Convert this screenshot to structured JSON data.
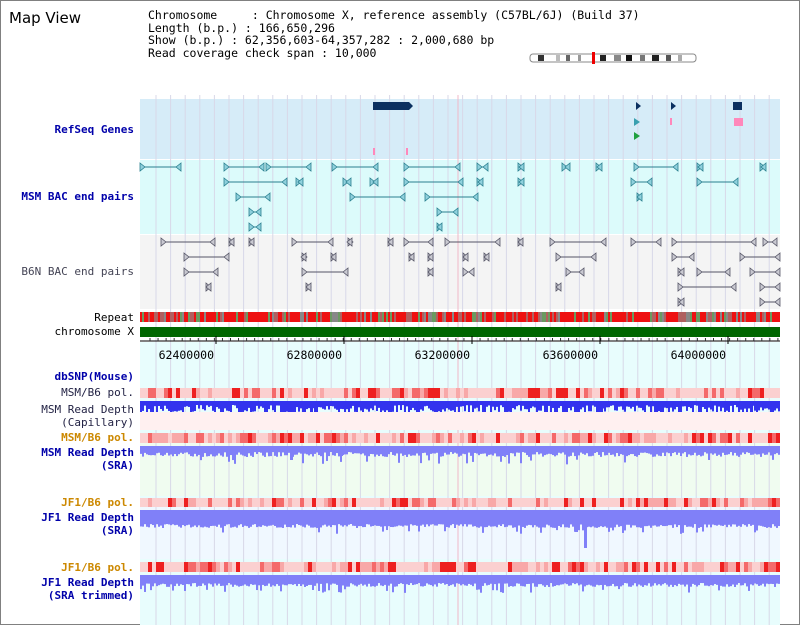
{
  "window": {
    "title": "Map View"
  },
  "info": {
    "line1": "Chromosome     : Chromosome X, reference assembly (C57BL/6J) (Build 37)",
    "line2": "Length (b.p.) : 166,650,296",
    "line3": "Show (b.p.) : 62,356,603-64,357,282 : 2,000,680 bp",
    "line4": "Read coverage check span : 10,000"
  },
  "tracks": {
    "refseq": "RefSeq Genes",
    "msm_bac": "MSM BAC end pairs",
    "b6n_bac": "B6N BAC end pairs",
    "repeat": "Repeat",
    "chromosome": "chromosome X",
    "dbsnp": "dbSNP(Mouse)",
    "msm_b6_pol_1": "MSM/B6 pol.",
    "msm_read_depth_cap_1": "MSM Read Depth",
    "msm_read_depth_cap_2": "(Capillary)",
    "msm_b6_pol_2": "MSM/B6 pol.",
    "msm_read_depth_sra_1": "MSM Read Depth",
    "msm_read_depth_sra_2": "(SRA)",
    "jf1_b6_pol_1": "JF1/B6 pol.",
    "jf1_read_depth_sra_1": "JF1 Read Depth",
    "jf1_read_depth_sra_2": "(SRA)",
    "jf1_b6_pol_2": "JF1/B6 pol.",
    "jf1_read_depth_trim_1": "JF1 Read Depth",
    "jf1_read_depth_trim_2": "(SRA trimmed)"
  },
  "axis": {
    "ticks": [
      "62400000",
      "62800000",
      "63200000",
      "63600000",
      "64000000"
    ]
  },
  "colors": {
    "refseq_band": "#d6ecf8",
    "msm_bac_band": "#dcfbfb",
    "b6n_bac_band": "#f4f4f4",
    "data_bg": "#e8fdfd",
    "chromosome": "#006600",
    "depth_blue": "#3333ee",
    "depth_light": "#8080f8",
    "pol_red": "#ee2222",
    "gene_navy": "#0b3060",
    "msm_teal": "#2a7f8f"
  }
}
